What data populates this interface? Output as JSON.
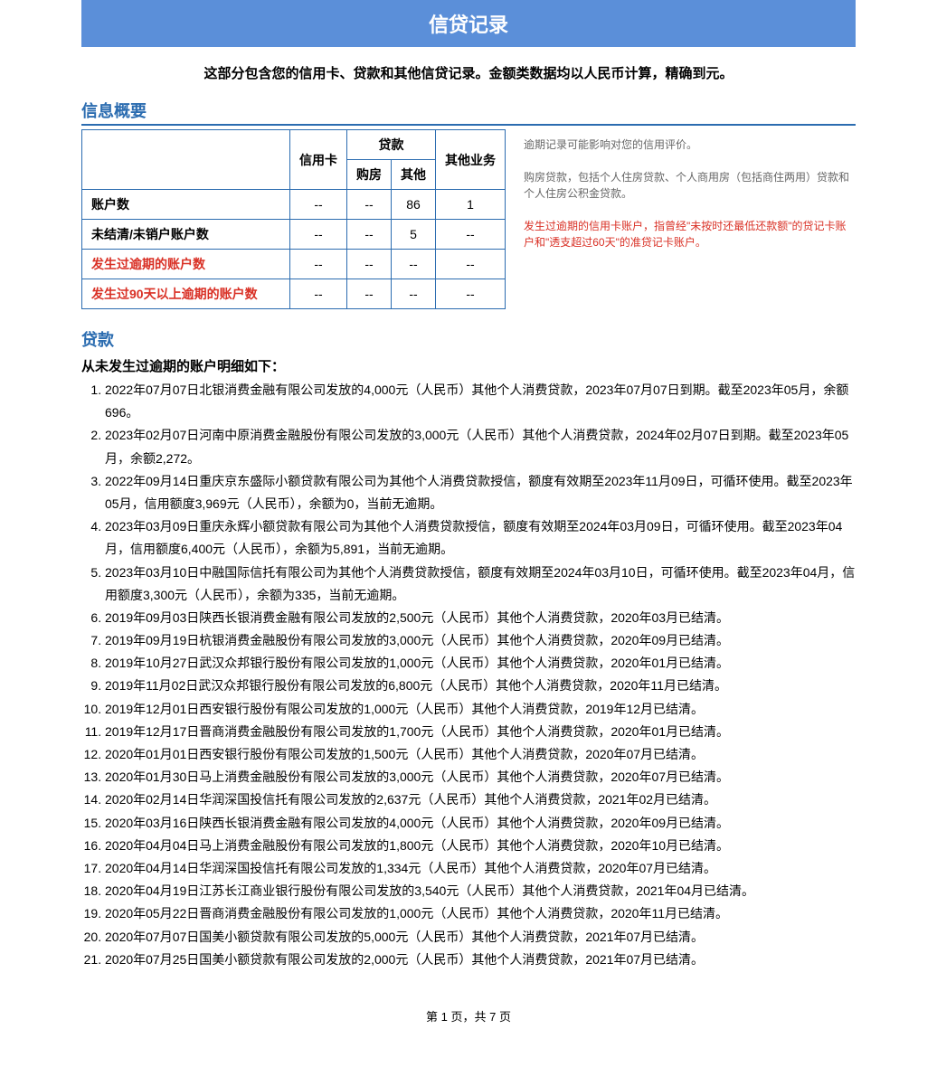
{
  "title": "信贷记录",
  "subtitle": "这部分包含您的信用卡、贷款和其他信贷记录。金额类数据均以人民币计算，精确到元。",
  "overview_header": "信息概要",
  "summary": {
    "cols": {
      "credit_card": "信用卡",
      "loan": "贷款",
      "housing": "购房",
      "other": "其他",
      "other_biz": "其他业务"
    },
    "rows": [
      {
        "label": "账户数",
        "credit_card": "--",
        "housing": "--",
        "other": "86",
        "other_biz": "1",
        "overdue": false
      },
      {
        "label": "未结清/未销户账户数",
        "credit_card": "--",
        "housing": "--",
        "other": "5",
        "other_biz": "--",
        "overdue": false
      },
      {
        "label": "发生过逾期的账户数",
        "credit_card": "--",
        "housing": "--",
        "other": "--",
        "other_biz": "--",
        "overdue": true
      },
      {
        "label": "发生过90天以上逾期的账户数",
        "credit_card": "--",
        "housing": "--",
        "other": "--",
        "other_biz": "--",
        "overdue": true
      }
    ]
  },
  "notes": {
    "n1": "逾期记录可能影响对您的信用评价。",
    "n2": "购房贷款，包括个人住房贷款、个人商用房（包括商住两用）贷款和个人住房公积金贷款。",
    "n3": "发生过逾期的信用卡账户，指曾经\"未按时还最低还款额\"的贷记卡账户和\"透支超过60天\"的准贷记卡账户。"
  },
  "loans": {
    "header": "贷款",
    "subheader": "从未发生过逾期的账户明细如下：",
    "items": [
      "2022年07月07日北银消费金融有限公司发放的4,000元（人民币）其他个人消费贷款，2023年07月07日到期。截至2023年05月，余额696。",
      "2023年02月07日河南中原消费金融股份有限公司发放的3,000元（人民币）其他个人消费贷款，2024年02月07日到期。截至2023年05月，余额2,272。",
      "2022年09月14日重庆京东盛际小额贷款有限公司为其他个人消费贷款授信，额度有效期至2023年11月09日，可循环使用。截至2023年05月，信用额度3,969元（人民币），余额为0，当前无逾期。",
      "2023年03月09日重庆永辉小额贷款有限公司为其他个人消费贷款授信，额度有效期至2024年03月09日，可循环使用。截至2023年04月，信用额度6,400元（人民币），余额为5,891，当前无逾期。",
      "2023年03月10日中融国际信托有限公司为其他个人消费贷款授信，额度有效期至2024年03月10日，可循环使用。截至2023年04月，信用额度3,300元（人民币），余额为335，当前无逾期。",
      "2019年09月03日陕西长银消费金融有限公司发放的2,500元（人民币）其他个人消费贷款，2020年03月已结清。",
      "2019年09月19日杭银消费金融股份有限公司发放的3,000元（人民币）其他个人消费贷款，2020年09月已结清。",
      "2019年10月27日武汉众邦银行股份有限公司发放的1,000元（人民币）其他个人消费贷款，2020年01月已结清。",
      "2019年11月02日武汉众邦银行股份有限公司发放的6,800元（人民币）其他个人消费贷款，2020年11月已结清。",
      "2019年12月01日西安银行股份有限公司发放的1,000元（人民币）其他个人消费贷款，2019年12月已结清。",
      "2019年12月17日晋商消费金融股份有限公司发放的1,700元（人民币）其他个人消费贷款，2020年01月已结清。",
      "2020年01月01日西安银行股份有限公司发放的1,500元（人民币）其他个人消费贷款，2020年07月已结清。",
      "2020年01月30日马上消费金融股份有限公司发放的3,000元（人民币）其他个人消费贷款，2020年07月已结清。",
      "2020年02月14日华润深国投信托有限公司发放的2,637元（人民币）其他个人消费贷款，2021年02月已结清。",
      "2020年03月16日陕西长银消费金融有限公司发放的4,000元（人民币）其他个人消费贷款，2020年09月已结清。",
      "2020年04月04日马上消费金融股份有限公司发放的1,800元（人民币）其他个人消费贷款，2020年10月已结清。",
      "2020年04月14日华润深国投信托有限公司发放的1,334元（人民币）其他个人消费贷款，2020年07月已结清。",
      "2020年04月19日江苏长江商业银行股份有限公司发放的3,540元（人民币）其他个人消费贷款，2021年04月已结清。",
      "2020年05月22日晋商消费金融股份有限公司发放的1,000元（人民币）其他个人消费贷款，2020年11月已结清。",
      "2020年07月07日国美小额贷款有限公司发放的5,000元（人民币）其他个人消费贷款，2021年07月已结清。",
      "2020年07月25日国美小额贷款有限公司发放的2,000元（人民币）其他个人消费贷款，2021年07月已结清。"
    ]
  },
  "pager": "第 1 页，共 7 页"
}
